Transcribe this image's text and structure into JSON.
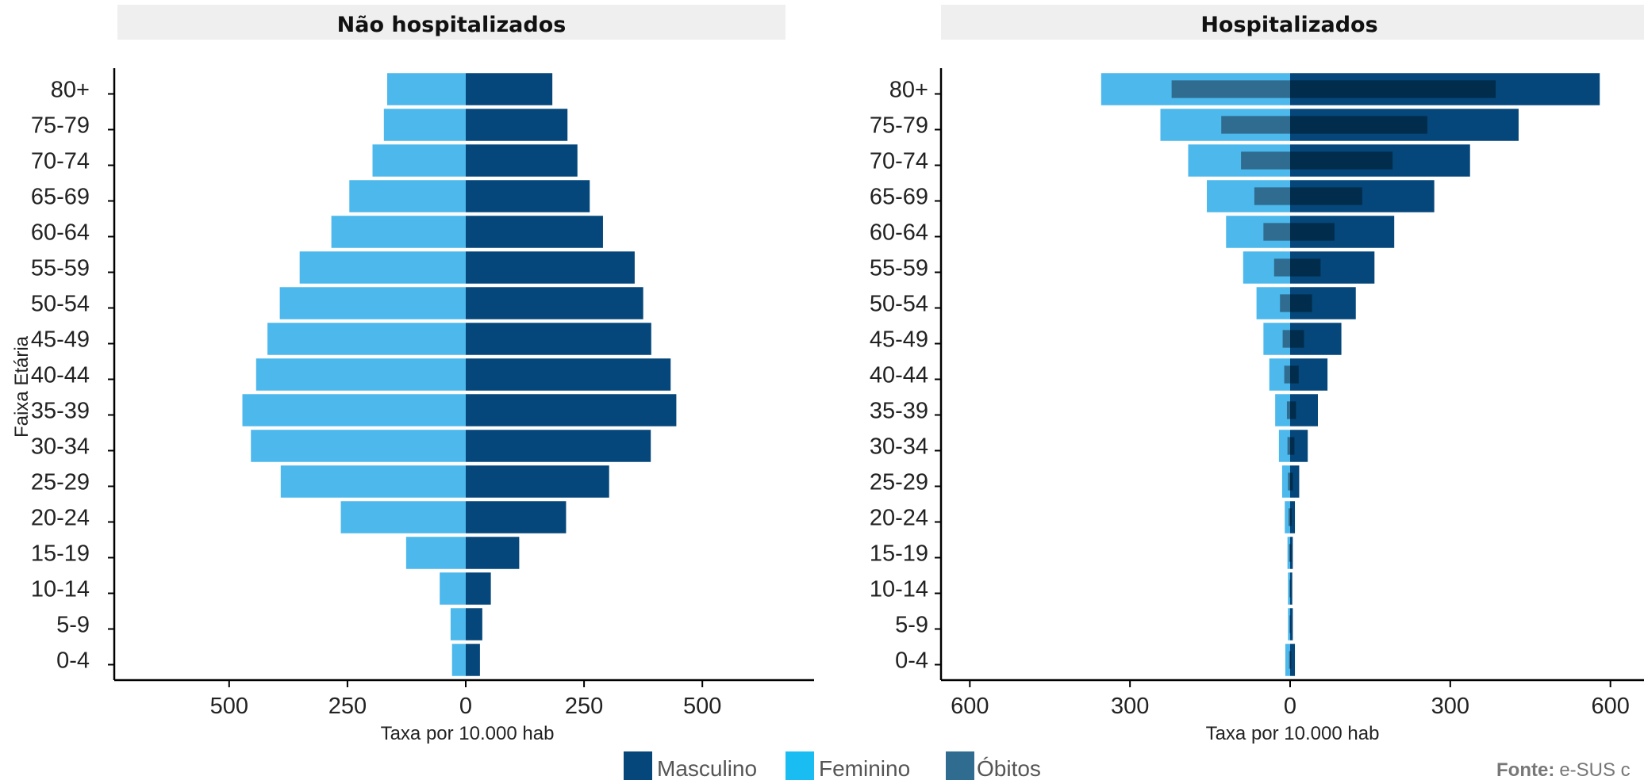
{
  "colors": {
    "male": "#05477a",
    "female": "#4cb8ec",
    "deaths": "#2f6c8f",
    "deaths_male": "#012c4b",
    "deaths_female": "#2f6c8f",
    "strip": "#efefef",
    "axis": "#000000"
  },
  "legend": [
    {
      "label": "Masculino",
      "color": "#05477a"
    },
    {
      "label": "Feminino",
      "color": "#1abdf2"
    },
    {
      "label": "Óbitos",
      "color": "#2f6c8f"
    }
  ],
  "source": {
    "label": "Fonte:",
    "text": "e-SUS c"
  },
  "chart_data": [
    {
      "type": "bar",
      "title": "Não hospitalizados",
      "xlabel": "Taxa por 10.000 hab",
      "ylabel": "Faixa Etária",
      "xlim": [
        -560,
        560
      ],
      "xticks": [
        -500,
        -250,
        0,
        250,
        500
      ],
      "xtick_labels": [
        "500",
        "250",
        "0",
        "250",
        "500"
      ],
      "categories": [
        "0-4",
        "5-9",
        "10-14",
        "15-19",
        "20-24",
        "25-29",
        "30-34",
        "35-39",
        "40-44",
        "45-49",
        "50-54",
        "55-59",
        "60-64",
        "65-69",
        "70-74",
        "75-79",
        "80+"
      ],
      "series": [
        {
          "name": "Masculino",
          "values": [
            30,
            35,
            53,
            113,
            212,
            303,
            391,
            445,
            433,
            392,
            375,
            357,
            290,
            262,
            236,
            215,
            183
          ]
        },
        {
          "name": "Feminino",
          "values": [
            29,
            32,
            55,
            126,
            264,
            391,
            454,
            472,
            443,
            419,
            393,
            351,
            284,
            246,
            197,
            173,
            166
          ]
        }
      ]
    },
    {
      "type": "bar",
      "title": "Hospitalizados",
      "xlabel": "Taxa por 10.000 hab",
      "xlim": [
        -660,
        660
      ],
      "xticks": [
        -600,
        -300,
        0,
        300,
        600
      ],
      "xtick_labels": [
        "600",
        "300",
        "0",
        "300",
        "600"
      ],
      "categories": [
        "0-4",
        "5-9",
        "10-14",
        "15-19",
        "20-24",
        "25-29",
        "30-34",
        "35-39",
        "40-44",
        "45-49",
        "50-54",
        "55-59",
        "60-64",
        "65-69",
        "70-74",
        "75-79",
        "80+"
      ],
      "series": [
        {
          "name": "Masculino",
          "values": [
            9,
            5,
            4,
            5,
            9,
            17,
            33,
            52,
            70,
            96,
            123,
            158,
            195,
            270,
            337,
            428,
            580
          ]
        },
        {
          "name": "Feminino",
          "values": [
            9,
            4,
            4,
            5,
            10,
            15,
            21,
            28,
            39,
            50,
            63,
            88,
            120,
            156,
            191,
            243,
            354
          ]
        },
        {
          "name": "Óbitos",
          "values": [
            2,
            1,
            1,
            2,
            3,
            5,
            8,
            11,
            16,
            26,
            41,
            57,
            83,
            135,
            192,
            257,
            385
          ]
        },
        {
          "name": "Óbitos",
          "values": [
            2,
            1,
            1,
            2,
            3,
            4,
            5,
            6,
            11,
            14,
            19,
            30,
            50,
            67,
            92,
            129,
            222
          ]
        }
      ]
    }
  ]
}
